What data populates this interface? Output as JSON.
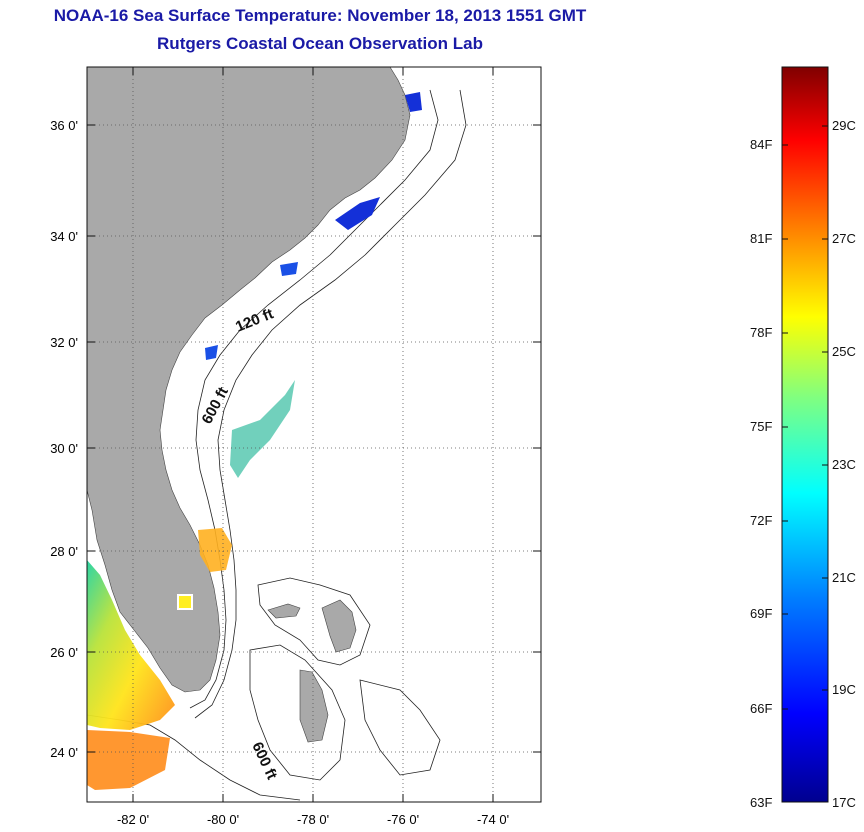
{
  "header": {
    "title": "NOAA-16 Sea Surface Temperature:  November 18, 2013 1551 GMT",
    "subtitle": "Rutgers Coastal Ocean Observation Lab"
  },
  "map": {
    "lat_labels": [
      "24 0'",
      "26 0'",
      "28 0'",
      "30 0'",
      "32 0'",
      "34 0'",
      "36 0'"
    ],
    "lon_labels": [
      "-82 0'",
      "-80 0'",
      "-78 0'",
      "-76 0'",
      "-74 0'"
    ],
    "contour_labels": [
      "120 ft",
      "600 ft",
      "600 ft"
    ],
    "colors": {
      "land": "#a9a9a9",
      "ocean_clouds": "#ffffff",
      "grid": "#555555"
    }
  },
  "colorbar": {
    "fahrenheit_labels": [
      "84F",
      "81F",
      "78F",
      "75F",
      "72F",
      "69F",
      "66F",
      "63F"
    ],
    "celsius_labels": [
      "29C",
      "27C",
      "25C",
      "23C",
      "21C",
      "19C",
      "17C"
    ],
    "gradient": [
      "#00008f",
      "#0000ff",
      "#0080ff",
      "#00ffff",
      "#80ff80",
      "#ffff00",
      "#ff8000",
      "#ff0000",
      "#800000"
    ]
  }
}
